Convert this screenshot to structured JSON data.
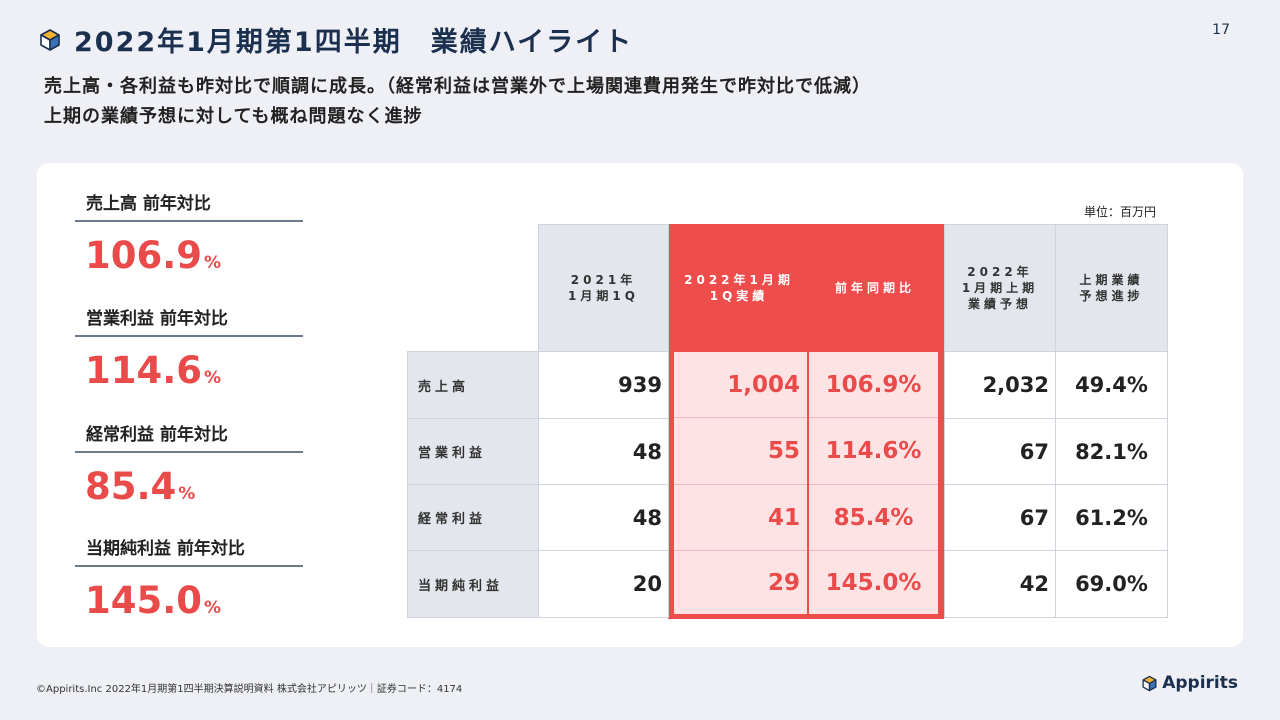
{
  "header": {
    "title": "2022年1月期第1四半期　業績ハイライト",
    "page_number": "17"
  },
  "lead": {
    "line1": "売上高・各利益も昨対比で順調に成長。（経常利益は営業外で上場関連費用発生で昨対比で低減）",
    "line2": "上期の業績予想に対しても概ね問題なく進捗"
  },
  "kpis": [
    {
      "label": "売上高 前年対比",
      "value": "106.9",
      "unit": "%"
    },
    {
      "label": "営業利益 前年対比",
      "value": "114.6",
      "unit": "%"
    },
    {
      "label": "経常利益 前年対比",
      "value": "85.4",
      "unit": "%"
    },
    {
      "label": "当期純利益 前年対比",
      "value": "145.0",
      "unit": "%"
    }
  ],
  "table": {
    "unit": "単位：百万円",
    "columns": {
      "prev_1q": "2021年\n1月期1Q",
      "curr_1q": "2022年1月期\n1Q実績",
      "yoy": "前年同期比",
      "forecast": "2022年\n1月期上期\n業績予想",
      "progress": "上期業績\n予想進捗"
    },
    "rows": [
      {
        "label": "売上高",
        "prev_1q": "939",
        "curr_1q": "1,004",
        "yoy": "106.9%",
        "forecast": "2,032",
        "progress": "49.4%"
      },
      {
        "label": "営業利益",
        "prev_1q": "48",
        "curr_1q": "55",
        "yoy": "114.6%",
        "forecast": "67",
        "progress": "82.1%"
      },
      {
        "label": "経常利益",
        "prev_1q": "48",
        "curr_1q": "41",
        "yoy": "85.4%",
        "forecast": "67",
        "progress": "61.2%"
      },
      {
        "label": "当期純利益",
        "prev_1q": "20",
        "curr_1q": "29",
        "yoy": "145.0%",
        "forecast": "42",
        "progress": "69.0%"
      }
    ]
  },
  "footer": {
    "text": "©Appirits.Inc  2022年1月期第1四半期決算説明資料  株式会社アピリッツ｜証券コード：4174",
    "logo_text": "Appirits"
  },
  "colors": {
    "accent_red": "#e94b4b",
    "navy": "#1b2f4e",
    "highlight_bg": "#fde3e3",
    "header_gray": "#e3e6ec"
  }
}
